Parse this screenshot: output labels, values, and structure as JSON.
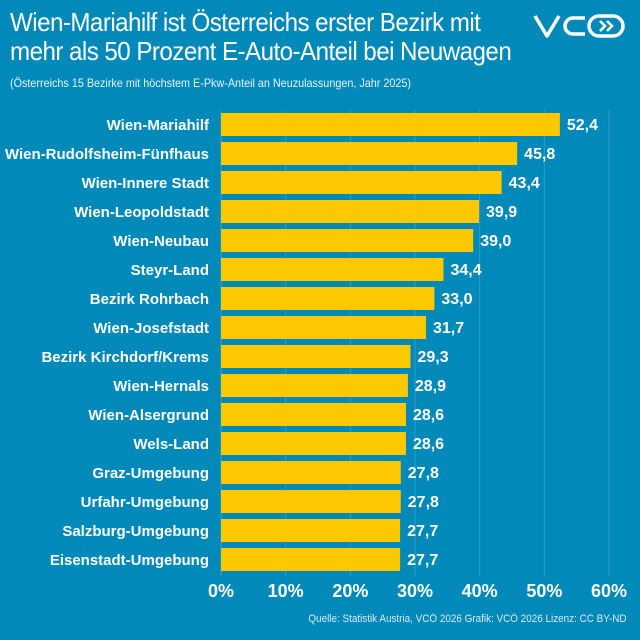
{
  "header": {
    "title_line1": "Wien-Mariahilf ist Österreichs erster Bezirk mit",
    "title_line2": "mehr als 50 Prozent E-Auto-Anteil bei Neuwagen",
    "subtitle": "(Österreichs 15 Bezirke mit höchstem E-Pkw-Anteil an Neuzulassungen, Jahr 2025)",
    "logo_text": "VCÖ"
  },
  "footer": {
    "source": "Quelle: Statistik Austria, VCÖ 2026 Grafik: VCÖ 2026 Lizenz: CC BY-ND"
  },
  "colors": {
    "background": "#0189b9",
    "bar": "#fcc800",
    "text": "#ffffff"
  },
  "chart_data": {
    "type": "bar",
    "orientation": "horizontal",
    "categories": [
      "Wien-Mariahilf",
      "Wien-Rudolfsheim-Fünfhaus",
      "Wien-Innere Stadt",
      "Wien-Leopoldstadt",
      "Wien-Neubau",
      "Steyr-Land",
      "Bezirk Rohrbach",
      "Wien-Josefstadt",
      "Bezirk Kirchdorf/Krems",
      "Wien-Hernals",
      "Wien-Alsergrund",
      "Wels-Land",
      "Graz-Umgebung",
      "Urfahr-Umgebung",
      "Salzburg-Umgebung",
      "Eisenstadt-Umgebung"
    ],
    "values": [
      52.4,
      45.8,
      43.4,
      39.9,
      39.0,
      34.4,
      33.0,
      31.7,
      29.3,
      28.9,
      28.6,
      28.6,
      27.8,
      27.8,
      27.7,
      27.7
    ],
    "value_labels": [
      "52,4",
      "45,8",
      "43,4",
      "39,9",
      "39,0",
      "34,4",
      "33,0",
      "31,7",
      "29,3",
      "28,9",
      "28,6",
      "28,6",
      "27,8",
      "27,8",
      "27,7",
      "27,7"
    ],
    "xlim": [
      0,
      60
    ],
    "xticks": [
      0,
      10,
      20,
      30,
      40,
      50,
      60
    ],
    "xtick_labels": [
      "0%",
      "10%",
      "20%",
      "30%",
      "40%",
      "50%",
      "60%"
    ],
    "grid": "vertical, faint",
    "legend": "none"
  }
}
